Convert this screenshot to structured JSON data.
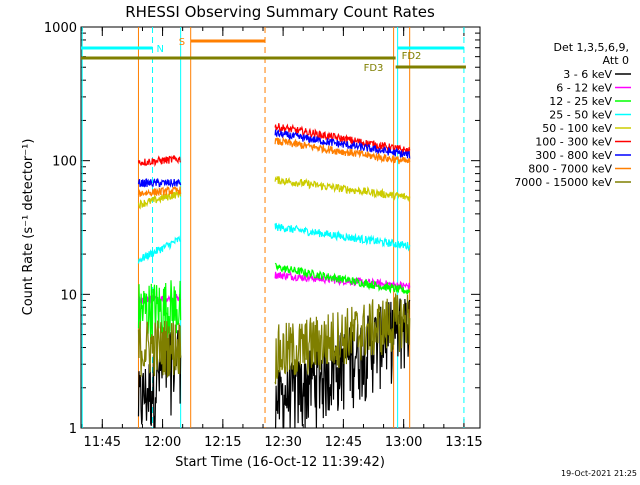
{
  "chart_data": {
    "type": "line",
    "title": "RHESSI Observing Summary Count Rates",
    "xlabel": "Start Time (16-Oct-12 11:39:42)",
    "ylabel": "Count Rate (s⁻¹ detector⁻¹)",
    "y_scale": "log",
    "xlim": [
      "11:39:42",
      "13:19:00"
    ],
    "ylim": [
      1,
      1000
    ],
    "x_ticks": [
      "11:45",
      "12:00",
      "12:15",
      "12:30",
      "12:45",
      "13:00",
      "13:15"
    ],
    "y_ticks": [
      "1",
      "10",
      "100",
      "1000"
    ],
    "footer": "19-Oct-2021 21:25",
    "legend": {
      "placement": "right",
      "title_lines": [
        "Det 1,3,5,6,9,",
        "Att 0"
      ]
    },
    "flags": [
      {
        "label": "N",
        "color": "#00ffff",
        "segments": [
          [
            "11:39:42",
            "11:57:30"
          ],
          [
            "12:58:30",
            "13:15:00"
          ]
        ]
      },
      {
        "label": "S",
        "color": "#ff7f00",
        "segments": [
          [
            "12:07:00",
            "12:25:30"
          ]
        ]
      },
      {
        "label": "FD2",
        "color": "#7f7f00",
        "segments": [
          [
            "11:39:42",
            "12:58:00"
          ]
        ]
      },
      {
        "label": "FD3",
        "color": "#7f7f00",
        "segments": [
          [
            "12:58:00",
            "13:15:30"
          ]
        ]
      }
    ],
    "vertical_markers": [
      {
        "time": "11:40:00",
        "color": "#00ffff",
        "style": "solid"
      },
      {
        "time": "11:57:30",
        "color": "#00ffff",
        "style": "dashed"
      },
      {
        "time": "12:04:30",
        "color": "#00ffff",
        "style": "solid"
      },
      {
        "time": "11:54:00",
        "color": "#ff7f00",
        "style": "solid"
      },
      {
        "time": "12:07:00",
        "color": "#ff7f00",
        "style": "solid"
      },
      {
        "time": "12:25:30",
        "color": "#ff7f00",
        "style": "dashed"
      },
      {
        "time": "12:58:30",
        "color": "#00ffff",
        "style": "solid"
      },
      {
        "time": "13:01:30",
        "color": "#ff7f00",
        "style": "solid"
      },
      {
        "time": "12:57:30",
        "color": "#ff7f00",
        "style": "solid"
      },
      {
        "time": "13:15:00",
        "color": "#00ffff",
        "style": "dashed"
      }
    ],
    "intervals": [
      [
        "11:54:00",
        "12:04:30"
      ],
      [
        "12:28:00",
        "13:01:30"
      ]
    ],
    "series": [
      {
        "name": "3 - 6 keV",
        "color": "#000000",
        "values": [
          [
            1.2,
            3.0
          ],
          [
            1.2,
            5.0
          ]
        ],
        "note_noise": 0.6
      },
      {
        "name": "6 - 12 keV",
        "color": "#ff00ff",
        "values": [
          [
            9.0,
            9.5
          ],
          [
            14.0,
            11.5
          ]
        ]
      },
      {
        "name": "12 - 25 keV",
        "color": "#00ff00",
        "values": [
          [
            7.5,
            8.0
          ],
          [
            16.0,
            10.5
          ]
        ]
      },
      {
        "name": "25 - 50 keV",
        "color": "#00ffff",
        "values": [
          [
            18.0,
            26.0
          ],
          [
            32.0,
            23.0
          ]
        ]
      },
      {
        "name": "50 - 100 keV",
        "color": "#cccc00",
        "values": [
          [
            47.0,
            57.0
          ],
          [
            72.0,
            53.0
          ]
        ]
      },
      {
        "name": "100 - 300 keV",
        "color": "#ff0000",
        "values": [
          [
            97.0,
            103.0
          ],
          [
            180.0,
            118.0
          ]
        ]
      },
      {
        "name": "300 - 800 keV",
        "color": "#0000ff",
        "values": [
          [
            68.0,
            68.0
          ],
          [
            160.0,
            110.0
          ]
        ]
      },
      {
        "name": "800 - 7000 keV",
        "color": "#ff7f00",
        "values": [
          [
            57.0,
            60.0
          ],
          [
            140.0,
            98.0
          ]
        ]
      },
      {
        "name": "7000 - 15000 keV",
        "color": "#7f7f00",
        "values": [
          [
            4.0,
            4.0
          ],
          [
            3.5,
            6.5
          ]
        ]
      }
    ]
  }
}
